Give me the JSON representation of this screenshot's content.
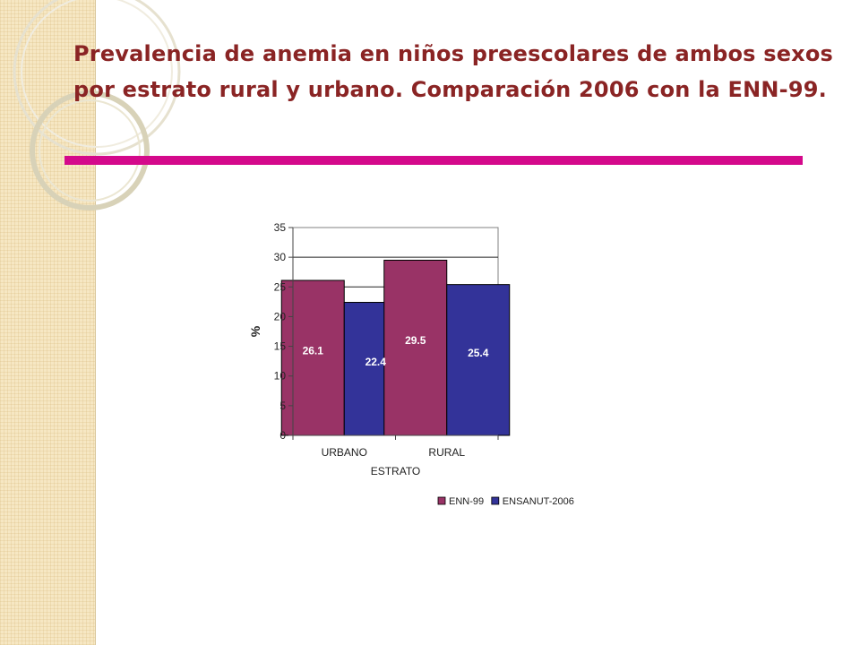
{
  "slide": {
    "title": "Prevalencia de anemia en niños preescolares de ambos sexos por estrato rural y urbano. Comparación 2006 con la ENN-99."
  },
  "colors": {
    "title": "#8a2424",
    "rule": "#d4098b",
    "series_1": "#993366",
    "series_2": "#333399"
  },
  "chart_data": {
    "type": "bar",
    "categories": [
      "URBANO",
      "RURAL"
    ],
    "series": [
      {
        "name": "ENN-99",
        "values": [
          26.1,
          29.5
        ],
        "color": "#993366"
      },
      {
        "name": "ENSANUT-2006",
        "values": [
          22.4,
          25.4
        ],
        "color": "#333399"
      }
    ],
    "xlabel": "ESTRATO",
    "ylabel": "%",
    "ylim": [
      0,
      35
    ],
    "yticks": [
      0,
      5,
      10,
      15,
      20,
      25,
      30,
      35
    ],
    "grid": true,
    "legend": "bottom",
    "data_labels": true
  }
}
